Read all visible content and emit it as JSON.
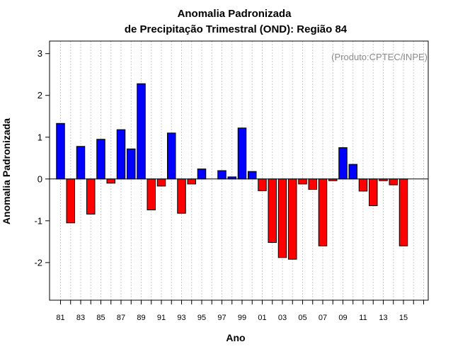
{
  "chart_data": {
    "type": "bar",
    "title_line1": "Anomalia Padronizada",
    "title_line2": "de Precipitação Trimestral (OND): Região 84",
    "xlabel": "Ano",
    "ylabel": "Anomalia Padronizada",
    "credit": "(Produto:CPTEC/INPE)",
    "ylim": [
      -2.9,
      3.3
    ],
    "yticks": [
      3,
      2,
      1,
      0,
      -1,
      -2
    ],
    "categories": [
      "81",
      "82",
      "83",
      "84",
      "85",
      "86",
      "87",
      "88",
      "89",
      "90",
      "91",
      "92",
      "93",
      "94",
      "95",
      "96",
      "97",
      "98",
      "99",
      "00",
      "01",
      "02",
      "03",
      "04",
      "05",
      "06",
      "07",
      "08",
      "09",
      "10",
      "11",
      "12",
      "13",
      "14",
      "15",
      "16",
      "17"
    ],
    "xtick_labels": [
      "81",
      "83",
      "85",
      "87",
      "89",
      "91",
      "93",
      "95",
      "97",
      "99",
      "01",
      "03",
      "05",
      "07",
      "09",
      "11",
      "13",
      "15"
    ],
    "values": [
      1.33,
      -1.05,
      0.78,
      -0.84,
      0.95,
      -0.1,
      1.18,
      0.72,
      2.28,
      -0.74,
      -0.17,
      1.1,
      -0.82,
      -0.12,
      0.24,
      null,
      0.2,
      0.05,
      1.22,
      0.18,
      -0.28,
      -1.52,
      -1.88,
      -1.92,
      -0.12,
      -0.25,
      -1.6,
      -0.04,
      0.75,
      0.35,
      -0.29,
      -0.64,
      -0.04,
      -0.14,
      -1.6,
      null,
      null
    ],
    "positive_color": "#0000ff",
    "negative_color": "#ff0000",
    "grid": true
  }
}
